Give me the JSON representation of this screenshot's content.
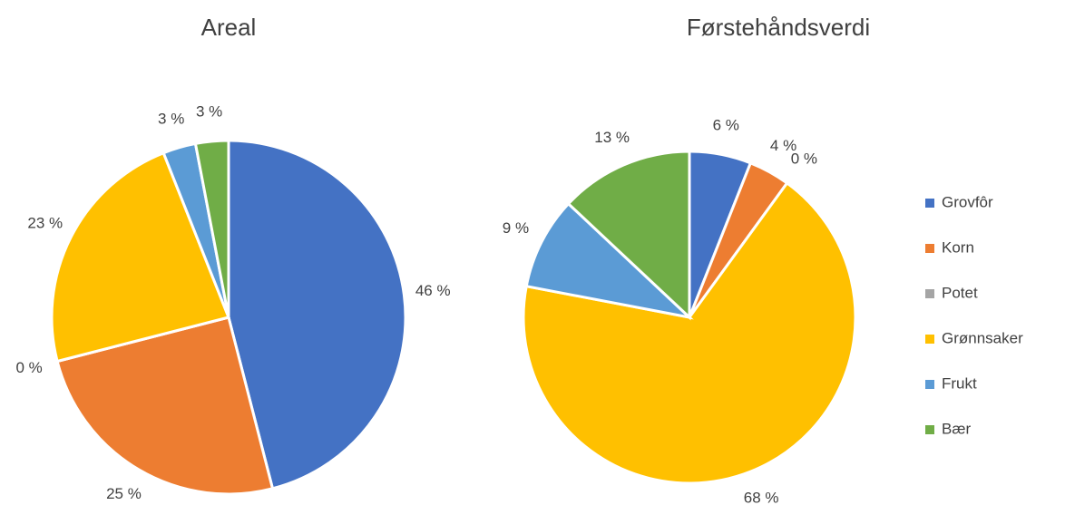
{
  "chart_data": [
    {
      "type": "pie",
      "title": "Areal",
      "values": [
        46,
        25,
        0,
        23,
        3,
        3
      ],
      "value_labels": [
        "46 %",
        "25 %",
        "0 %",
        "23 %",
        "3 %",
        "3 %"
      ]
    },
    {
      "type": "pie",
      "title": "Førstehåndsverdi",
      "values": [
        6,
        4,
        0,
        68,
        9,
        13
      ],
      "value_labels": [
        "6 %",
        "4 %",
        "0 %",
        "68 %",
        "9 %",
        "13 %"
      ]
    }
  ],
  "categories": [
    "Grovfôr",
    "Korn",
    "Potet",
    "Grønnsaker",
    "Frukt",
    "Bær"
  ],
  "colors": [
    "#4472c4",
    "#ed7d31",
    "#a5a5a5",
    "#ffc000",
    "#5b9bd5",
    "#70ad47"
  ]
}
